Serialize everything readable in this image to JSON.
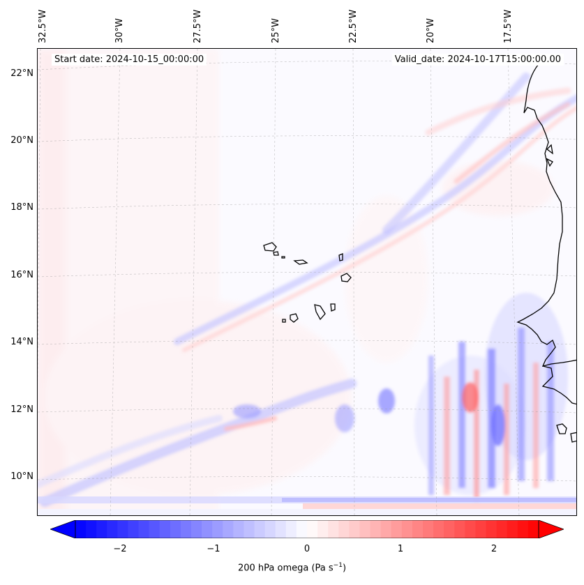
{
  "map": {
    "start_date": "Start date: 2024-10-15_00:00:00",
    "valid_date": "Valid_date: 2024-10-17T15:00:00.00",
    "lon_labels": [
      "32.5°W",
      "30°W",
      "27.5°W",
      "25°W",
      "22.5°W",
      "20°W",
      "17.5°W"
    ],
    "lat_labels": [
      "22°N",
      "20°N",
      "18°N",
      "16°N",
      "14°N",
      "12°N",
      "10°N"
    ]
  },
  "colorbar": {
    "label_main": "200 hPa omega (Pa s",
    "label_sup": "−1",
    "label_end": ")",
    "ticks": [
      "−2",
      "−1",
      "0",
      "1",
      "2"
    ],
    "min": -2.75,
    "max": 2.75,
    "colors": {
      "negative": "#0000ff",
      "zero": "#ffffff",
      "positive": "#ff0000"
    }
  }
}
